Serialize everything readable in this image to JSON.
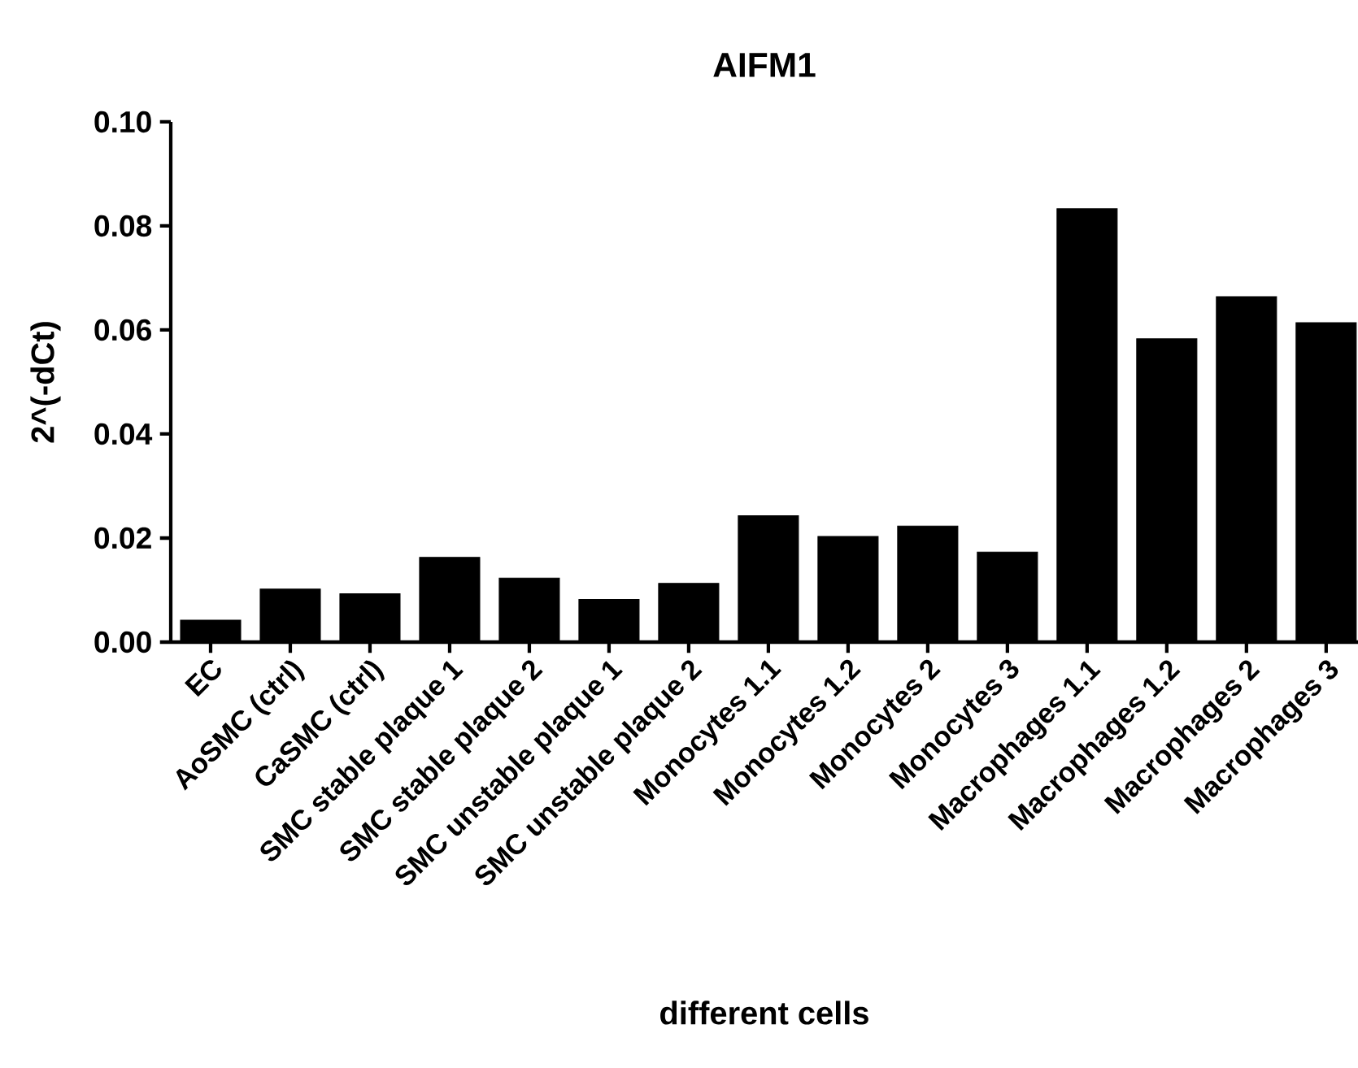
{
  "chart_data": {
    "type": "bar",
    "title": "AIFM1",
    "xlabel": "different cells",
    "ylabel": "2^(-dCt)",
    "categories": [
      "EC",
      "AoSMC (ctrl)",
      "CaSMC (ctrl)",
      "SMC stable plaque 1",
      "SMC stable plaque 2",
      "SMC unstable plaque 1",
      "SMC unstable plaque 2",
      "Monocytes 1.1",
      "Monocytes 1.2",
      "Monocytes 2",
      "Monocytes 3",
      "Macrophages 1.1",
      "Macrophages 1.2",
      "Macrophages 2",
      "Macrophages 3"
    ],
    "values": [
      0.0042,
      0.0102,
      0.0093,
      0.0163,
      0.0123,
      0.0082,
      0.0113,
      0.0243,
      0.0203,
      0.0223,
      0.0173,
      0.0833,
      0.0583,
      0.0664,
      0.0614
    ],
    "color": "#000000",
    "ylim": [
      0,
      0.1
    ],
    "yticks": [
      {
        "value": 0,
        "label": "0.00"
      },
      {
        "value": 0.02,
        "label": "0.02"
      },
      {
        "value": 0.04,
        "label": "0.04"
      },
      {
        "value": 0.06,
        "label": "0.06"
      },
      {
        "value": 0.08,
        "label": "0.08"
      },
      {
        "value": 0.1,
        "label": "0.10"
      }
    ],
    "grid": false
  }
}
